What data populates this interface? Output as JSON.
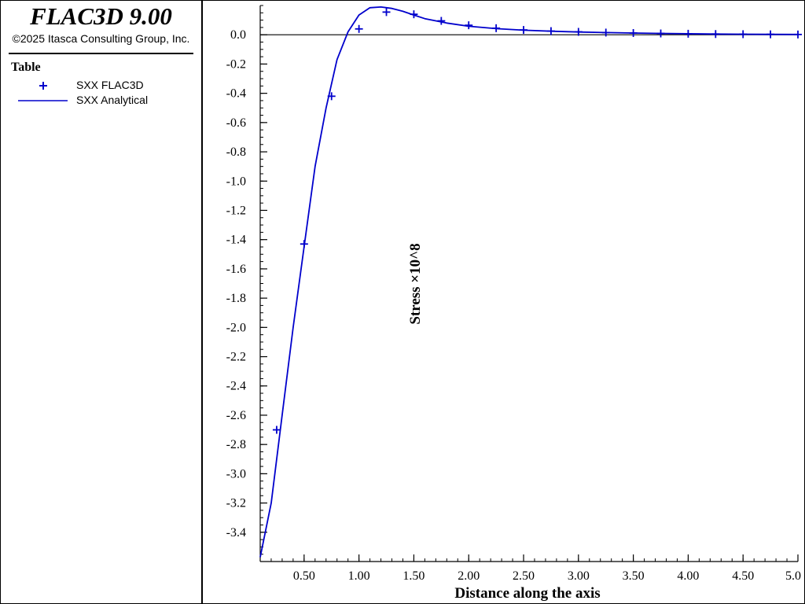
{
  "app": {
    "title": "FLAC3D 9.00",
    "copyright": "©2025 Itasca Consulting Group, Inc."
  },
  "legend": {
    "title": "Table",
    "items": [
      {
        "label": "SXX FLAC3D",
        "marker": "plus",
        "color": "#0000cc"
      },
      {
        "label": "SXX Analytical",
        "marker": "line",
        "color": "#0000cc"
      }
    ]
  },
  "chart_data": {
    "type": "line",
    "xlabel": "Distance along the axis",
    "ylabel": "Stress ×10^8",
    "xlim": [
      0.1,
      5.0
    ],
    "ylim": [
      -3.6,
      0.2
    ],
    "xticks": [
      0.5,
      1.0,
      1.5,
      2.0,
      2.5,
      3.0,
      3.5,
      4.0,
      4.5,
      5.0
    ],
    "xtick_labels": [
      "0.50",
      "1.00",
      "1.50",
      "2.00",
      "2.50",
      "3.00",
      "3.50",
      "4.00",
      "4.50",
      "5.0"
    ],
    "yticks": [
      0.0,
      -0.2,
      -0.4,
      -0.6,
      -0.8,
      -1.0,
      -1.2,
      -1.4,
      -1.6,
      -1.8,
      -2.0,
      -2.2,
      -2.4,
      -2.6,
      -2.8,
      -3.0,
      -3.2,
      -3.4
    ],
    "ytick_labels": [
      "0.0",
      "-0.2",
      "-0.4",
      "-0.6",
      "-0.8",
      "-1.0",
      "-1.2",
      "-1.4",
      "-1.6",
      "-1.8",
      "-2.0",
      "-2.2",
      "-2.4",
      "-2.6",
      "-2.8",
      "-3.0",
      "-3.2",
      "-3.4"
    ],
    "zero_line": true,
    "color": "#0000cc",
    "series": [
      {
        "name": "SXX FLAC3D",
        "style": "markers",
        "x": [
          0.25,
          0.5,
          0.75,
          1.0,
          1.25,
          1.5,
          1.75,
          2.0,
          2.25,
          2.5,
          2.75,
          3.0,
          3.25,
          3.5,
          3.75,
          4.0,
          4.25,
          4.5,
          4.75,
          5.0
        ],
        "y": [
          -2.7,
          -1.43,
          -0.42,
          0.04,
          0.155,
          0.14,
          0.095,
          0.065,
          0.045,
          0.033,
          0.025,
          0.02,
          0.015,
          0.012,
          0.009,
          0.007,
          0.005,
          0.004,
          0.003,
          0.002
        ]
      },
      {
        "name": "SXX Analytical",
        "style": "line",
        "x": [
          0.1,
          0.2,
          0.3,
          0.4,
          0.5,
          0.6,
          0.7,
          0.8,
          0.9,
          1.0,
          1.1,
          1.2,
          1.3,
          1.4,
          1.5,
          1.6,
          1.8,
          2.0,
          2.25,
          2.5,
          2.75,
          3.0,
          3.25,
          3.5,
          3.75,
          4.0,
          4.25,
          4.5,
          4.75,
          5.0
        ],
        "y": [
          -3.57,
          -3.2,
          -2.6,
          -2.0,
          -1.45,
          -0.9,
          -0.5,
          -0.17,
          0.02,
          0.135,
          0.185,
          0.19,
          0.18,
          0.16,
          0.135,
          0.11,
          0.08,
          0.058,
          0.042,
          0.031,
          0.024,
          0.019,
          0.015,
          0.012,
          0.009,
          0.007,
          0.005,
          0.004,
          0.003,
          0.002
        ]
      }
    ]
  }
}
